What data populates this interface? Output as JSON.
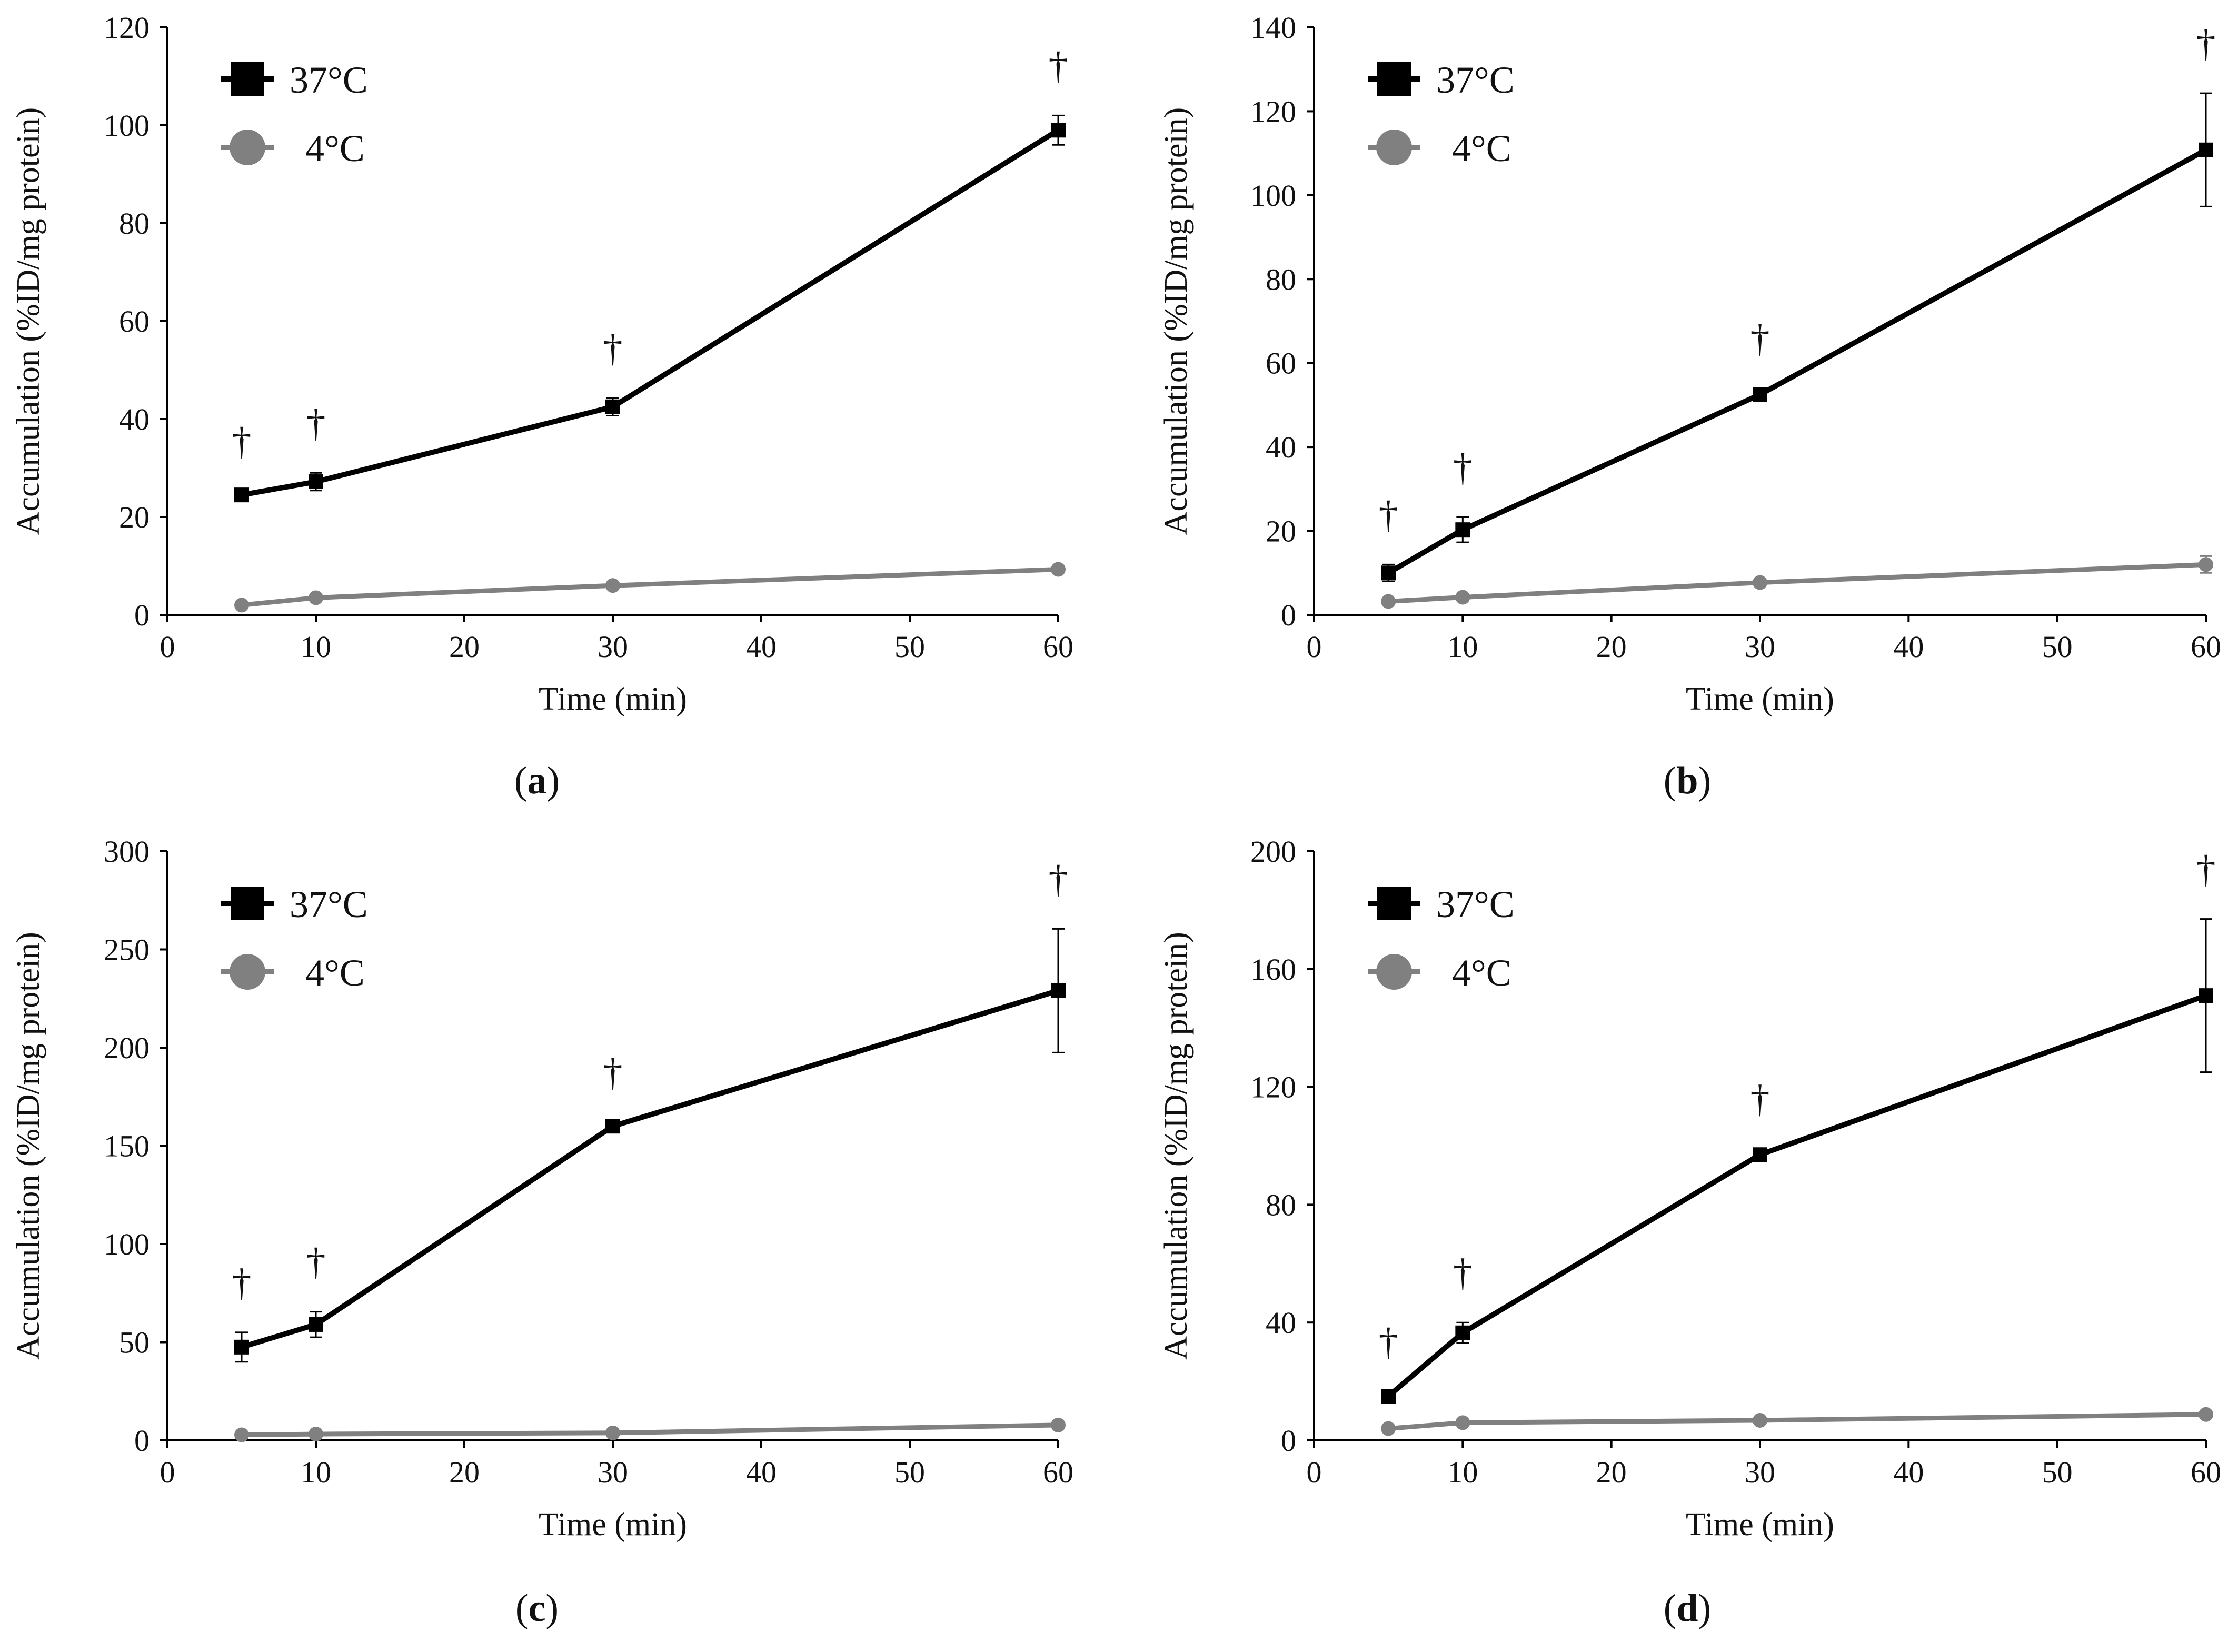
{
  "figure": {
    "panels": [
      "a",
      "b",
      "c",
      "d"
    ]
  },
  "colors": {
    "series_37": "#000000",
    "series_4": "#808080",
    "axis": "#000000"
  },
  "chart_data": [
    {
      "panel": "a",
      "caption_letter": "a",
      "caption": "(a)",
      "type": "line",
      "xlabel": "Time (min)",
      "ylabel": "Accumulation (%ID/mg protein)",
      "xlim": [
        0,
        60
      ],
      "ylim": [
        0,
        120
      ],
      "xticks": [
        0,
        10,
        20,
        30,
        40,
        50,
        60
      ],
      "yticks": [
        0,
        20,
        40,
        60,
        80,
        100,
        120
      ],
      "x": [
        5,
        10,
        30,
        60
      ],
      "series": [
        {
          "name": "37°C",
          "legend_label": "37°C",
          "marker": "square",
          "color": "#000000",
          "values": [
            24.5,
            27.2,
            42.5,
            99.0
          ],
          "errors": [
            0.8,
            1.8,
            1.8,
            3.0
          ]
        },
        {
          "name": "4°C",
          "legend_label": "4°C",
          "marker": "circle",
          "color": "#808080",
          "values": [
            2.0,
            3.5,
            6.0,
            9.3
          ],
          "errors": [
            0.3,
            0.4,
            0.5,
            0.6
          ]
        }
      ],
      "significance": {
        "symbol": "†",
        "x": [
          5,
          10,
          30,
          60
        ]
      }
    },
    {
      "panel": "b",
      "caption_letter": "b",
      "caption": "(b)",
      "type": "line",
      "xlabel": "Time (min)",
      "ylabel": "Accumulation (%ID/mg protein)",
      "xlim": [
        0,
        60
      ],
      "ylim": [
        0,
        140
      ],
      "xticks": [
        0,
        10,
        20,
        30,
        40,
        50,
        60
      ],
      "yticks": [
        0,
        20,
        40,
        60,
        80,
        100,
        120,
        140
      ],
      "x": [
        5,
        10,
        30,
        60
      ],
      "series": [
        {
          "name": "37°C",
          "legend_label": "37°C",
          "marker": "square",
          "color": "#000000",
          "values": [
            10.0,
            20.3,
            52.5,
            110.8
          ],
          "errors": [
            2.0,
            3.0,
            1.5,
            13.5
          ]
        },
        {
          "name": "4°C",
          "legend_label": "4°C",
          "marker": "circle",
          "color": "#808080",
          "values": [
            3.2,
            4.2,
            7.7,
            12.0
          ],
          "errors": [
            0.4,
            0.5,
            0.6,
            2.0
          ]
        }
      ],
      "significance": {
        "symbol": "†",
        "x": [
          5,
          10,
          30,
          60
        ]
      }
    },
    {
      "panel": "c",
      "caption_letter": "c",
      "caption": "(c)",
      "type": "line",
      "xlabel": "Time (min)",
      "ylabel": "Accumulation (%ID/mg protein)",
      "xlim": [
        0,
        60
      ],
      "ylim": [
        0,
        300
      ],
      "xticks": [
        0,
        10,
        20,
        30,
        40,
        50,
        60
      ],
      "yticks": [
        0,
        50,
        100,
        150,
        200,
        250,
        300
      ],
      "x": [
        5,
        10,
        30,
        60
      ],
      "series": [
        {
          "name": "37°C",
          "legend_label": "37°C",
          "marker": "square",
          "color": "#000000",
          "values": [
            47.5,
            59.0,
            160.0,
            229.0
          ],
          "errors": [
            7.5,
            6.5,
            2.0,
            31.5
          ]
        },
        {
          "name": "4°C",
          "legend_label": "4°C",
          "marker": "circle",
          "color": "#808080",
          "values": [
            2.8,
            3.2,
            3.8,
            7.8
          ],
          "errors": [
            0.4,
            0.5,
            0.5,
            0.8
          ]
        }
      ],
      "significance": {
        "symbol": "†",
        "x": [
          5,
          10,
          30,
          60
        ]
      }
    },
    {
      "panel": "d",
      "caption_letter": "d",
      "caption": "(d)",
      "type": "line",
      "xlabel": "Time (min)",
      "ylabel": "Accumulation (%ID/mg protein)",
      "xlim": [
        0,
        60
      ],
      "ylim": [
        0,
        200
      ],
      "xticks": [
        0,
        10,
        20,
        30,
        40,
        50,
        60
      ],
      "yticks": [
        0,
        40,
        80,
        120,
        160,
        200
      ],
      "x": [
        5,
        10,
        30,
        60
      ],
      "series": [
        {
          "name": "37°C",
          "legend_label": "37°C",
          "marker": "square",
          "color": "#000000",
          "values": [
            15.0,
            36.5,
            97.0,
            151.0
          ],
          "errors": [
            1.5,
            3.5,
            2.0,
            26.0
          ]
        },
        {
          "name": "4°C",
          "legend_label": "4°C",
          "marker": "circle",
          "color": "#808080",
          "values": [
            4.0,
            6.0,
            6.8,
            8.8
          ],
          "errors": [
            0.4,
            0.6,
            0.6,
            0.8
          ]
        }
      ],
      "significance": {
        "symbol": "†",
        "x": [
          5,
          10,
          30,
          60
        ]
      }
    }
  ]
}
